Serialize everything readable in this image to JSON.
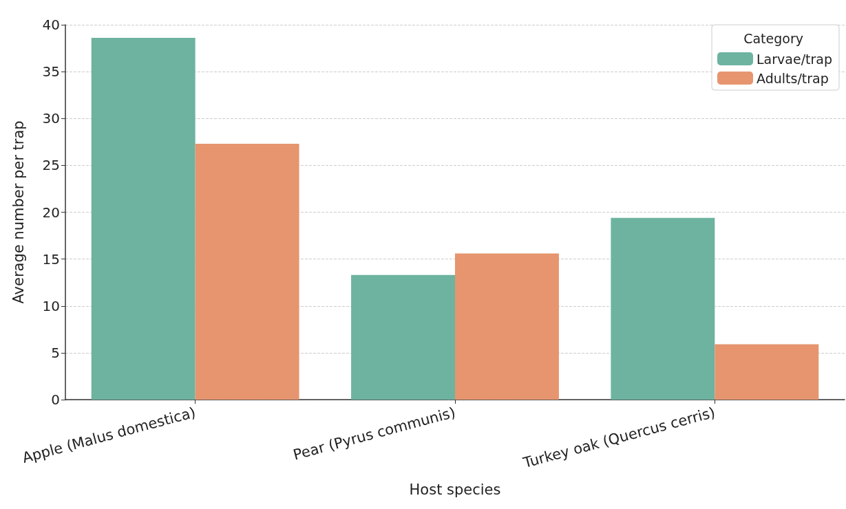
{
  "chart_data": {
    "type": "bar",
    "xlabel": "Host species",
    "ylabel": "Average number per trap",
    "legend_title": "Category",
    "categories": [
      "Apple (Malus domestica)",
      "Pear (Pyrus communis)",
      "Turkey oak (Quercus cerris)"
    ],
    "series": [
      {
        "name": "Larvae/trap",
        "color": "#6db3a0",
        "values": [
          38.6,
          13.3,
          19.4
        ]
      },
      {
        "name": "Adults/trap",
        "color": "#e6956f",
        "values": [
          27.3,
          15.6,
          5.9
        ]
      }
    ],
    "ylim": [
      0,
      40
    ],
    "yticks": [
      0,
      5,
      10,
      15,
      20,
      25,
      30,
      35,
      40
    ],
    "grid": "y",
    "legend": "top right"
  }
}
